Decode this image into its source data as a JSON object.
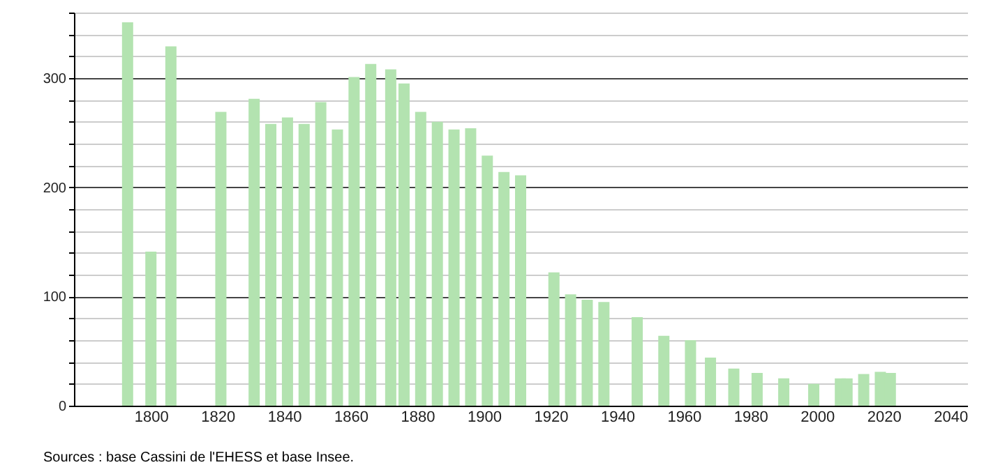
{
  "chart_data": {
    "type": "bar",
    "color": "#b3e3b0",
    "x": [
      1793,
      1800,
      1806,
      1821,
      1831,
      1836,
      1841,
      1846,
      1851,
      1856,
      1861,
      1866,
      1872,
      1876,
      1881,
      1886,
      1891,
      1896,
      1901,
      1906,
      1911,
      1921,
      1926,
      1931,
      1936,
      1946,
      1954,
      1962,
      1968,
      1975,
      1982,
      1990,
      1999,
      2007,
      2009,
      2014,
      2019,
      2022
    ],
    "values": [
      351,
      141,
      329,
      269,
      281,
      258,
      264,
      258,
      278,
      253,
      301,
      313,
      308,
      295,
      269,
      260,
      253,
      254,
      229,
      214,
      211,
      122,
      102,
      97,
      95,
      81,
      64,
      60,
      44,
      34,
      30,
      25,
      20,
      25,
      25,
      29,
      31,
      30
    ],
    "xlim": [
      1779,
      2043
    ],
    "xticks": [
      1800,
      1820,
      1840,
      1860,
      1880,
      1900,
      1920,
      1940,
      1960,
      1980,
      2000,
      2020,
      2040
    ],
    "ylim": [
      0,
      360
    ],
    "yticks": [
      0,
      {
        "value": 20,
        "label": null
      },
      {
        "value": 40,
        "label": null
      },
      {
        "value": 60,
        "label": null
      },
      {
        "value": 80,
        "label": null
      },
      100,
      {
        "value": 120,
        "label": null
      },
      {
        "value": 140,
        "label": null
      },
      {
        "value": 160,
        "label": null
      },
      {
        "value": 180,
        "label": null
      },
      200,
      {
        "value": 220,
        "label": null
      },
      {
        "value": 240,
        "label": null
      },
      {
        "value": 260,
        "label": null
      },
      {
        "value": 280,
        "label": null
      },
      300,
      {
        "value": 320,
        "label": null
      },
      {
        "value": 340,
        "label": null
      },
      {
        "value": 360,
        "label": null
      }
    ],
    "grid": "y",
    "annotations": [
      "Sources : base Cassini de l'EHESS et base Insee."
    ]
  }
}
